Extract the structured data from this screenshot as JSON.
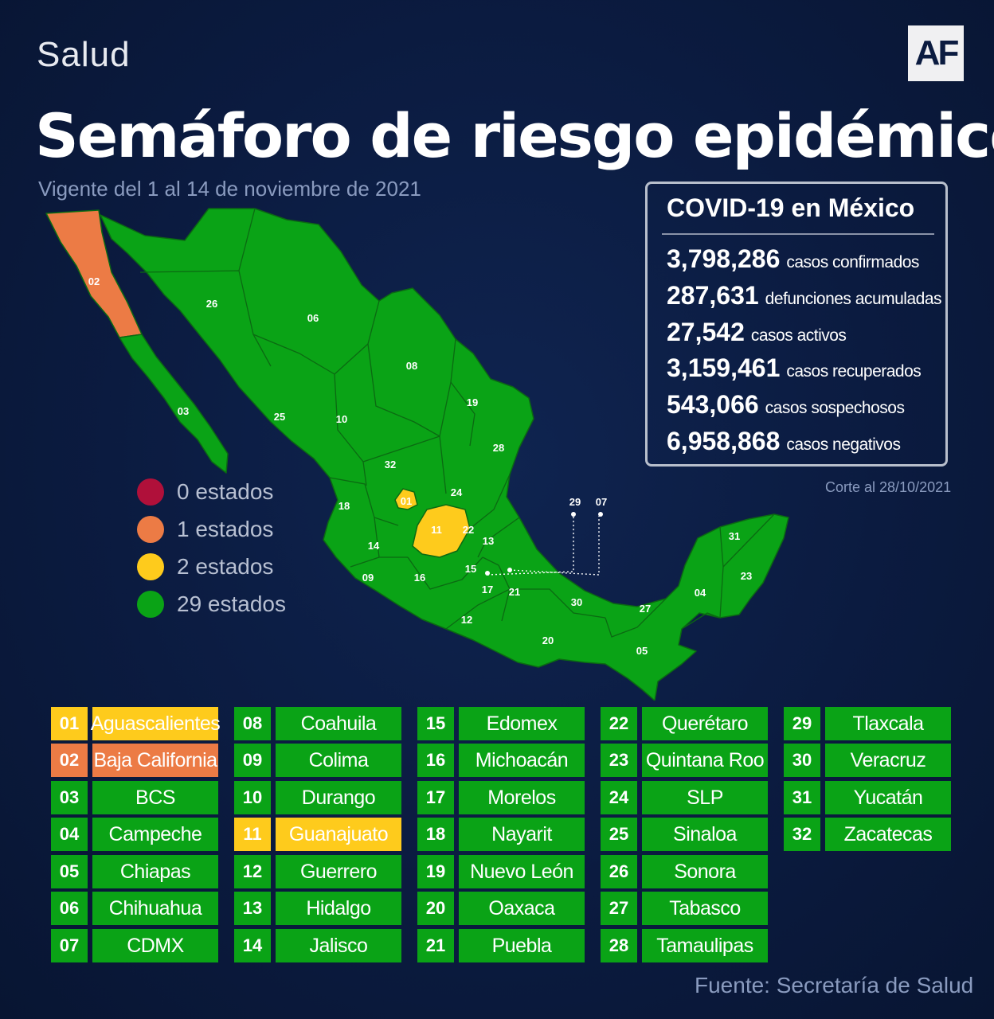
{
  "header": {
    "section": "Salud",
    "logo": "AF",
    "title": "Semáforo de riesgo epidémico",
    "validity": "Vigente del 1 al 14 de noviembre de 2021"
  },
  "covid": {
    "title": "COVID-19 en México",
    "stats": [
      {
        "value": "3,798,286",
        "label": "casos confirmados"
      },
      {
        "value": "287,631",
        "label": "defunciones acumuladas"
      },
      {
        "value": "27,542",
        "label": "casos activos"
      },
      {
        "value": "3,159,461",
        "label": "casos recuperados"
      },
      {
        "value": "543,066",
        "label": "casos sospechosos"
      },
      {
        "value": "6,958,868",
        "label": "casos negativos"
      }
    ],
    "cutoff": "Corte al 28/10/2021"
  },
  "colors": {
    "red": "#b0103a",
    "orange": "#ec7b45",
    "yellow": "#fecb1c",
    "green": "#0aa316",
    "border": "#0b6a12"
  },
  "legend": [
    {
      "label": "0 estados",
      "color": "#b0103a"
    },
    {
      "label": "1 estados",
      "color": "#ec7b45"
    },
    {
      "label": "2 estados",
      "color": "#fecb1c"
    },
    {
      "label": "29 estados",
      "color": "#0aa316"
    }
  ],
  "map_labels": [
    "01",
    "02",
    "03",
    "04",
    "05",
    "06",
    "07",
    "08",
    "09",
    "10",
    "11",
    "12",
    "13",
    "14",
    "15",
    "16",
    "17",
    "18",
    "19",
    "20",
    "21",
    "22",
    "23",
    "24",
    "25",
    "26",
    "27",
    "28",
    "29",
    "30",
    "31",
    "32"
  ],
  "states": [
    {
      "num": "01",
      "name": "Aguascalientes",
      "level": "yellow"
    },
    {
      "num": "02",
      "name": "Baja California",
      "level": "orange"
    },
    {
      "num": "03",
      "name": "BCS",
      "level": "green"
    },
    {
      "num": "04",
      "name": "Campeche",
      "level": "green"
    },
    {
      "num": "05",
      "name": "Chiapas",
      "level": "green"
    },
    {
      "num": "06",
      "name": "Chihuahua",
      "level": "green"
    },
    {
      "num": "07",
      "name": "CDMX",
      "level": "green"
    },
    {
      "num": "08",
      "name": "Coahuila",
      "level": "green"
    },
    {
      "num": "09",
      "name": "Colima",
      "level": "green"
    },
    {
      "num": "10",
      "name": "Durango",
      "level": "green"
    },
    {
      "num": "11",
      "name": "Guanajuato",
      "level": "yellow"
    },
    {
      "num": "12",
      "name": "Guerrero",
      "level": "green"
    },
    {
      "num": "13",
      "name": "Hidalgo",
      "level": "green"
    },
    {
      "num": "14",
      "name": "Jalisco",
      "level": "green"
    },
    {
      "num": "15",
      "name": "Edomex",
      "level": "green"
    },
    {
      "num": "16",
      "name": "Michoacán",
      "level": "green"
    },
    {
      "num": "17",
      "name": "Morelos",
      "level": "green"
    },
    {
      "num": "18",
      "name": "Nayarit",
      "level": "green"
    },
    {
      "num": "19",
      "name": "Nuevo León",
      "level": "green"
    },
    {
      "num": "20",
      "name": "Oaxaca",
      "level": "green"
    },
    {
      "num": "21",
      "name": "Puebla",
      "level": "green"
    },
    {
      "num": "22",
      "name": "Querétaro",
      "level": "green"
    },
    {
      "num": "23",
      "name": "Quintana Roo",
      "level": "green"
    },
    {
      "num": "24",
      "name": "SLP",
      "level": "green"
    },
    {
      "num": "25",
      "name": "Sinaloa",
      "level": "green"
    },
    {
      "num": "26",
      "name": "Sonora",
      "level": "green"
    },
    {
      "num": "27",
      "name": "Tabasco",
      "level": "green"
    },
    {
      "num": "28",
      "name": "Tamaulipas",
      "level": "green"
    },
    {
      "num": "29",
      "name": "Tlaxcala",
      "level": "green"
    },
    {
      "num": "30",
      "name": "Veracruz",
      "level": "green"
    },
    {
      "num": "31",
      "name": "Yucatán",
      "level": "green"
    },
    {
      "num": "32",
      "name": "Zacatecas",
      "level": "green"
    }
  ],
  "source": "Fuente: Secretaría de Salud"
}
